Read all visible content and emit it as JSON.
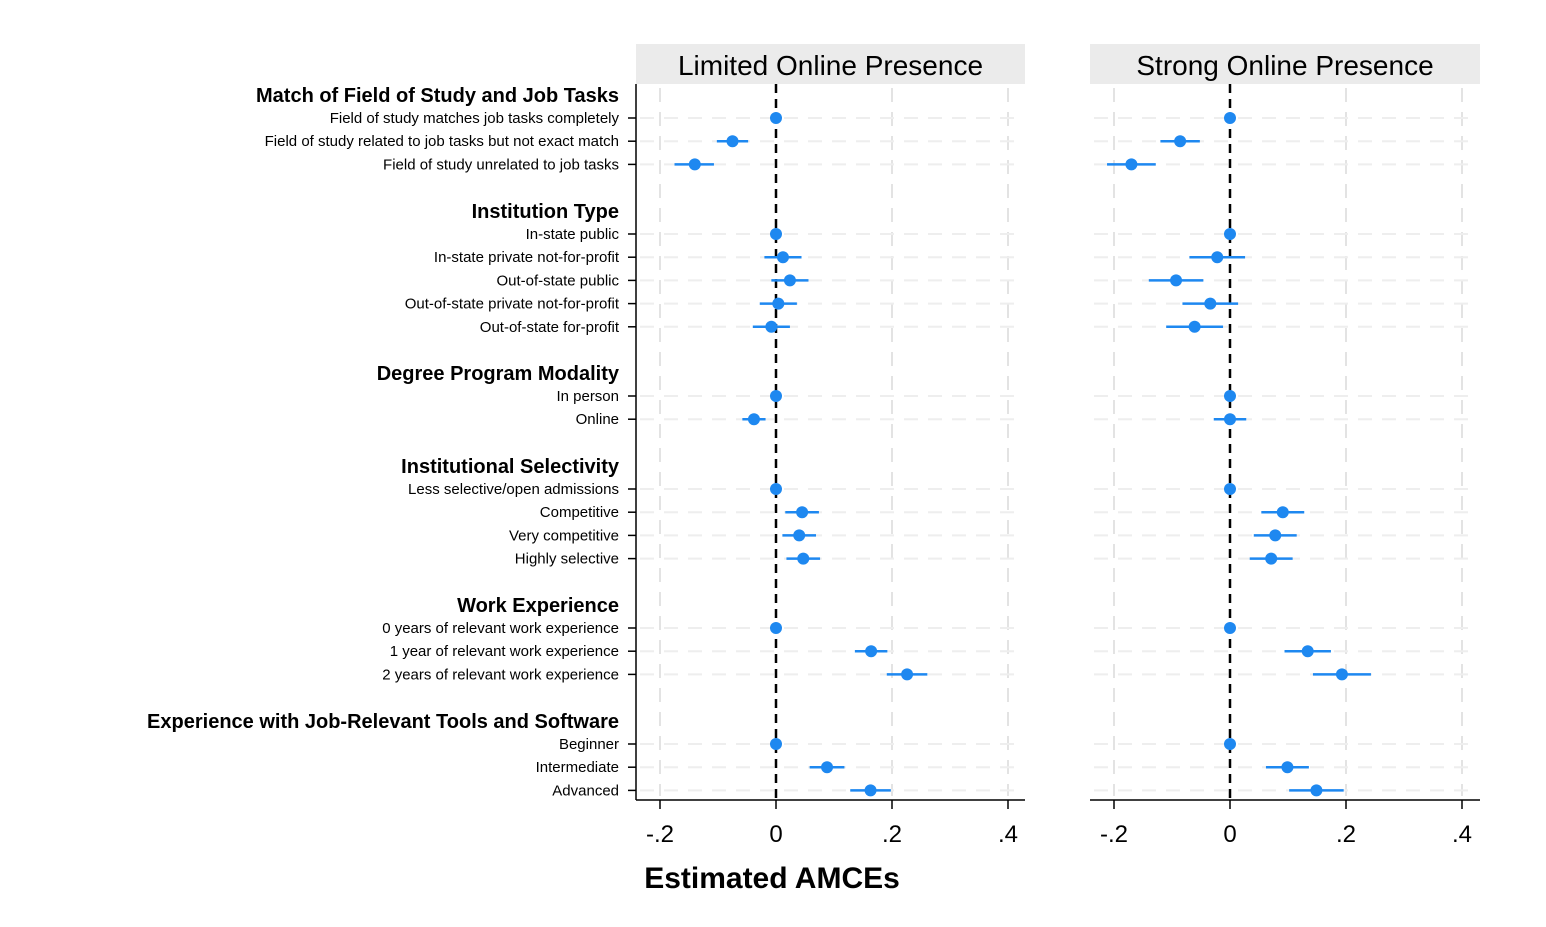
{
  "chart_data": {
    "type": "scatter",
    "subtype": "coefficient-plot-with-95ci",
    "xlabel": "Estimated AMCEs",
    "xlim": [
      -0.25,
      0.43
    ],
    "xticks": [
      -0.2,
      0,
      0.2,
      0.4
    ],
    "xtick_labels": [
      "-.2",
      "0",
      ".2",
      ".4"
    ],
    "reference_line": 0,
    "grid": true,
    "marker_color": "#1E88F0",
    "panels": [
      {
        "name": "Limited Online Presence"
      },
      {
        "name": "Strong Online Presence"
      }
    ],
    "groups": [
      {
        "title": "Match of Field of Study and Job Tasks",
        "rows": [
          {
            "label": "Field of study matches job tasks completely",
            "estimates": [
              [
                0,
                0,
                0
              ],
              [
                0,
                0,
                0
              ]
            ]
          },
          {
            "label": "Field of study related to job tasks but not exact match",
            "estimates": [
              [
                -0.075,
                -0.102,
                -0.048
              ],
              [
                -0.086,
                -0.12,
                -0.052
              ]
            ]
          },
          {
            "label": "Field of study unrelated to job tasks",
            "estimates": [
              [
                -0.14,
                -0.175,
                -0.107
              ],
              [
                -0.17,
                -0.212,
                -0.128
              ]
            ]
          }
        ]
      },
      {
        "title": "Institution Type",
        "rows": [
          {
            "label": "In-state public",
            "estimates": [
              [
                0,
                0,
                0
              ],
              [
                0,
                0,
                0
              ]
            ]
          },
          {
            "label": "In-state private not-for-profit",
            "estimates": [
              [
                0.012,
                -0.02,
                0.044
              ],
              [
                -0.022,
                -0.07,
                0.026
              ]
            ]
          },
          {
            "label": "Out-of-state public",
            "estimates": [
              [
                0.024,
                -0.008,
                0.056
              ],
              [
                -0.093,
                -0.14,
                -0.046
              ]
            ]
          },
          {
            "label": "Out-of-state private not-for-profit",
            "estimates": [
              [
                0.004,
                -0.028,
                0.036
              ],
              [
                -0.034,
                -0.082,
                0.014
              ]
            ]
          },
          {
            "label": "Out-of-state for-profit",
            "estimates": [
              [
                -0.008,
                -0.04,
                0.024
              ],
              [
                -0.061,
                -0.11,
                -0.012
              ]
            ]
          }
        ]
      },
      {
        "title": "Degree Program Modality",
        "rows": [
          {
            "label": "In person",
            "estimates": [
              [
                0,
                0,
                0
              ],
              [
                0,
                0,
                0
              ]
            ]
          },
          {
            "label": "Online",
            "estimates": [
              [
                -0.038,
                -0.058,
                -0.018
              ],
              [
                0,
                -0.028,
                0.028
              ]
            ]
          }
        ]
      },
      {
        "title": "Institutional Selectivity",
        "rows": [
          {
            "label": "Less selective/open admissions",
            "estimates": [
              [
                0,
                0,
                0
              ],
              [
                0,
                0,
                0
              ]
            ]
          },
          {
            "label": "Competitive",
            "estimates": [
              [
                0.045,
                0.016,
                0.074
              ],
              [
                0.091,
                0.054,
                0.128
              ]
            ]
          },
          {
            "label": "Very competitive",
            "estimates": [
              [
                0.04,
                0.011,
                0.069
              ],
              [
                0.078,
                0.041,
                0.115
              ]
            ]
          },
          {
            "label": "Highly selective",
            "estimates": [
              [
                0.047,
                0.018,
                0.076
              ],
              [
                0.071,
                0.034,
                0.108
              ]
            ]
          }
        ]
      },
      {
        "title": "Work Experience",
        "rows": [
          {
            "label": "0 years of relevant work experience",
            "estimates": [
              [
                0,
                0,
                0
              ],
              [
                0,
                0,
                0
              ]
            ]
          },
          {
            "label": "1 year of relevant work experience",
            "estimates": [
              [
                0.164,
                0.136,
                0.192
              ],
              [
                0.134,
                0.094,
                0.174
              ]
            ]
          },
          {
            "label": "2 years of relevant work experience",
            "estimates": [
              [
                0.226,
                0.191,
                0.261
              ],
              [
                0.193,
                0.143,
                0.243
              ]
            ]
          }
        ]
      },
      {
        "title": "Experience with Job-Relevant Tools and Software",
        "rows": [
          {
            "label": "Beginner",
            "estimates": [
              [
                0,
                0,
                0
              ],
              [
                0,
                0,
                0
              ]
            ]
          },
          {
            "label": "Intermediate",
            "estimates": [
              [
                0.088,
                0.058,
                0.118
              ],
              [
                0.099,
                0.062,
                0.136
              ]
            ]
          },
          {
            "label": "Advanced",
            "estimates": [
              [
                0.163,
                0.128,
                0.198
              ],
              [
                0.149,
                0.102,
                0.196
              ]
            ]
          }
        ]
      }
    ]
  }
}
